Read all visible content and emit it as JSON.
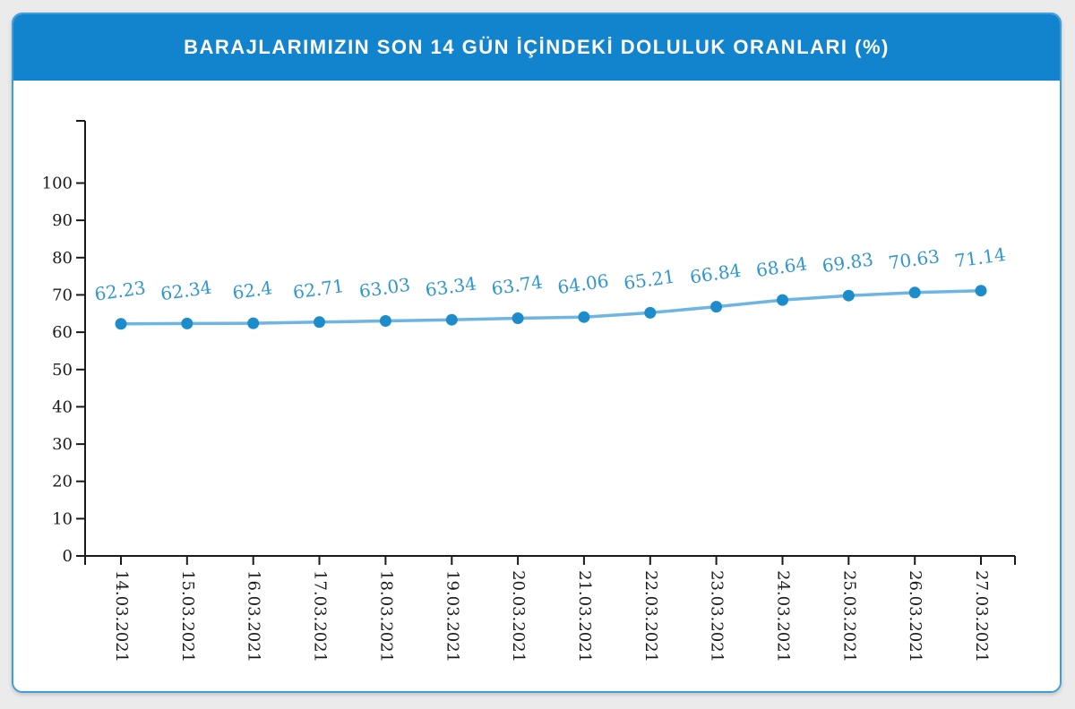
{
  "page": {
    "background": "#ebebeb"
  },
  "card": {
    "background": "#ffffff",
    "border_color": "#3e9ed9"
  },
  "header": {
    "title": "BARAJLARIMIZIN SON 14 GÜN İÇİNDEKİ DOLULUK ORANLARI (%)",
    "background": "#1283cd",
    "text_color": "#ffffff"
  },
  "chart_data": {
    "type": "line",
    "title": "BARAJLARIMIZIN SON 14 GÜN İÇİNDEKİ DOLULUK ORANLARI (%)",
    "categories": [
      "14.03.2021",
      "15.03.2021",
      "16.03.2021",
      "17.03.2021",
      "18.03.2021",
      "19.03.2021",
      "20.03.2021",
      "21.03.2021",
      "22.03.2021",
      "23.03.2021",
      "24.03.2021",
      "25.03.2021",
      "26.03.2021",
      "27.03.2021"
    ],
    "values": [
      62.23,
      62.34,
      62.4,
      62.71,
      63.03,
      63.34,
      63.74,
      64.06,
      65.21,
      66.84,
      68.64,
      69.83,
      70.63,
      71.14
    ],
    "data_labels": [
      "62.23",
      "62.34",
      "62.4",
      "62.71",
      "63.03",
      "63.34",
      "63.74",
      "64.06",
      "65.21",
      "66.84",
      "68.64",
      "69.83",
      "70.63",
      "71.14"
    ],
    "xlabel": "",
    "ylabel": "",
    "ylim": [
      0,
      100
    ],
    "yticks": [
      0,
      10,
      20,
      30,
      40,
      50,
      60,
      70,
      80,
      90,
      100
    ],
    "grid": false,
    "legend": false,
    "x_tick_label_rotation_deg": 90,
    "data_label_rotation_deg": -8,
    "colors": {
      "line": "#6eb5e1",
      "marker": "#1d8ccb",
      "data_label": "#2e96d1",
      "axis": "#1a1a1a",
      "tick_label": "#1a1a1a"
    }
  }
}
